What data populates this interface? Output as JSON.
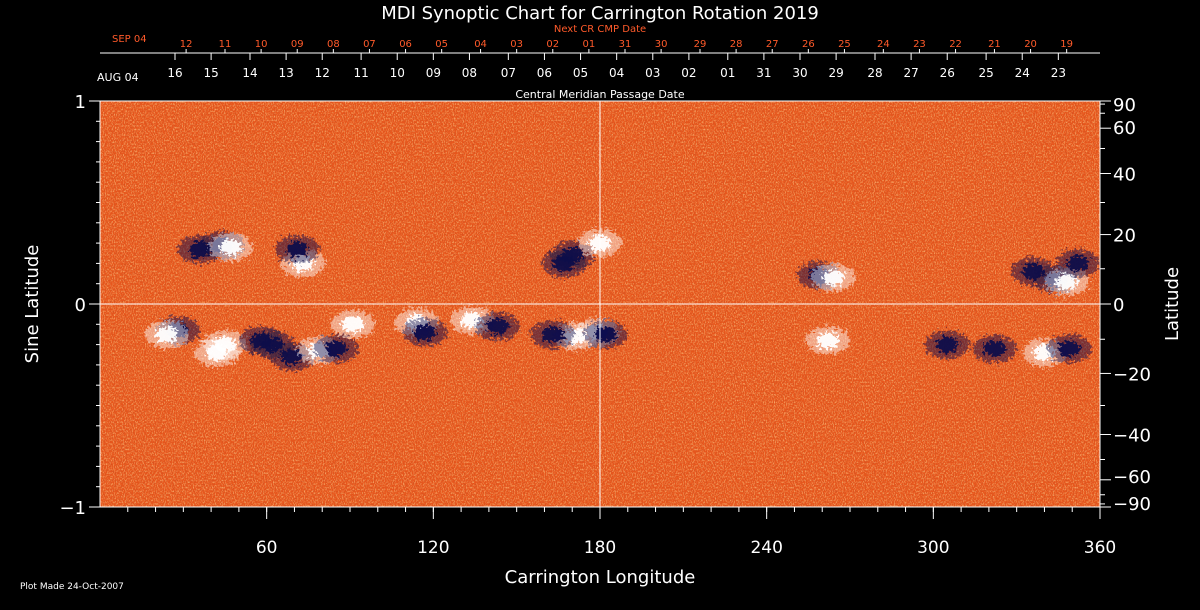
{
  "chart_data": {
    "type": "heatmap",
    "title": "MDI Synoptic Chart for Carrington Rotation 2019",
    "xlabel": "Carrington Longitude",
    "ylabel_left": "Sine Latitude",
    "ylabel_right": "Latitude",
    "xlim": [
      0,
      360
    ],
    "ylim": [
      -1,
      1
    ],
    "x_ticks": [
      60,
      120,
      180,
      240,
      300,
      360
    ],
    "y_ticks_left": [
      {
        "v": 1,
        "label": "1"
      },
      {
        "v": 0,
        "label": "0"
      },
      {
        "v": -1,
        "label": "−1"
      }
    ],
    "y_ticks_right": [
      {
        "deg": 90,
        "label": "90"
      },
      {
        "deg": 60,
        "label": "60"
      },
      {
        "deg": 40,
        "label": "40"
      },
      {
        "deg": 20,
        "label": "20"
      },
      {
        "deg": 0,
        "label": "0"
      },
      {
        "deg": -20,
        "label": "−20"
      },
      {
        "deg": -40,
        "label": "−40"
      },
      {
        "deg": -60,
        "label": "−60"
      },
      {
        "deg": -90,
        "label": "−90"
      }
    ],
    "crosshair": {
      "longitude": 180,
      "sine_latitude": 0
    },
    "cmp_axis": {
      "title": "Central Meridian Passage Date",
      "start_label": "AUG 04",
      "ticks": [
        {
          "lon": 27,
          "label": "16"
        },
        {
          "lon": 40,
          "label": "15"
        },
        {
          "lon": 54,
          "label": "14"
        },
        {
          "lon": 67,
          "label": "13"
        },
        {
          "lon": 80,
          "label": "12"
        },
        {
          "lon": 94,
          "label": "11"
        },
        {
          "lon": 107,
          "label": "10"
        },
        {
          "lon": 120,
          "label": "09"
        },
        {
          "lon": 133,
          "label": "08"
        },
        {
          "lon": 147,
          "label": "07"
        },
        {
          "lon": 160,
          "label": "06"
        },
        {
          "lon": 173,
          "label": "05"
        },
        {
          "lon": 186,
          "label": "04"
        },
        {
          "lon": 199,
          "label": "03"
        },
        {
          "lon": 212,
          "label": "02"
        },
        {
          "lon": 226,
          "label": "01"
        },
        {
          "lon": 239,
          "label": "31"
        },
        {
          "lon": 252,
          "label": "30"
        },
        {
          "lon": 265,
          "label": "29"
        },
        {
          "lon": 279,
          "label": "28"
        },
        {
          "lon": 292,
          "label": "27"
        },
        {
          "lon": 305,
          "label": "26"
        },
        {
          "lon": 319,
          "label": "25"
        },
        {
          "lon": 332,
          "label": "24"
        },
        {
          "lon": 345,
          "label": "23"
        }
      ]
    },
    "next_cmp_axis": {
      "title": "Next CR CMP Date",
      "start_label": "SEP 04",
      "ticks": [
        {
          "lon": 31,
          "label": "12"
        },
        {
          "lon": 45,
          "label": "11"
        },
        {
          "lon": 58,
          "label": "10"
        },
        {
          "lon": 71,
          "label": "09"
        },
        {
          "lon": 84,
          "label": "08"
        },
        {
          "lon": 97,
          "label": "07"
        },
        {
          "lon": 110,
          "label": "06"
        },
        {
          "lon": 123,
          "label": "05"
        },
        {
          "lon": 137,
          "label": "04"
        },
        {
          "lon": 150,
          "label": "03"
        },
        {
          "lon": 163,
          "label": "02"
        },
        {
          "lon": 176,
          "label": "01"
        },
        {
          "lon": 189,
          "label": "31"
        },
        {
          "lon": 202,
          "label": "30"
        },
        {
          "lon": 216,
          "label": "29"
        },
        {
          "lon": 229,
          "label": "28"
        },
        {
          "lon": 242,
          "label": "27"
        },
        {
          "lon": 255,
          "label": "26"
        },
        {
          "lon": 268,
          "label": "25"
        },
        {
          "lon": 282,
          "label": "24"
        },
        {
          "lon": 295,
          "label": "23"
        },
        {
          "lon": 308,
          "label": "22"
        },
        {
          "lon": 322,
          "label": "21"
        },
        {
          "lon": 335,
          "label": "20"
        },
        {
          "lon": 348,
          "label": "19"
        }
      ]
    },
    "active_regions": [
      {
        "lon": 44,
        "sinlat": 0.29,
        "polarity": "negative"
      },
      {
        "lon": 36,
        "sinlat": 0.27,
        "polarity": "negative"
      },
      {
        "lon": 47,
        "sinlat": 0.28,
        "polarity": "positive"
      },
      {
        "lon": 73,
        "sinlat": 0.2,
        "polarity": "positive"
      },
      {
        "lon": 71,
        "sinlat": 0.27,
        "polarity": "negative"
      },
      {
        "lon": 170,
        "sinlat": 0.24,
        "polarity": "negative"
      },
      {
        "lon": 167,
        "sinlat": 0.2,
        "polarity": "negative"
      },
      {
        "lon": 180,
        "sinlat": 0.3,
        "polarity": "positive"
      },
      {
        "lon": 259,
        "sinlat": 0.14,
        "polarity": "negative"
      },
      {
        "lon": 264,
        "sinlat": 0.13,
        "polarity": "positive"
      },
      {
        "lon": 336,
        "sinlat": 0.16,
        "polarity": "negative"
      },
      {
        "lon": 344,
        "sinlat": 0.12,
        "polarity": "negative"
      },
      {
        "lon": 348,
        "sinlat": 0.11,
        "polarity": "positive"
      },
      {
        "lon": 352,
        "sinlat": 0.2,
        "polarity": "negative"
      },
      {
        "lon": 28,
        "sinlat": -0.13,
        "polarity": "negative"
      },
      {
        "lon": 24,
        "sinlat": -0.15,
        "polarity": "positive"
      },
      {
        "lon": 45,
        "sinlat": -0.2,
        "polarity": "positive"
      },
      {
        "lon": 42,
        "sinlat": -0.24,
        "polarity": "positive"
      },
      {
        "lon": 62,
        "sinlat": -0.2,
        "polarity": "negative"
      },
      {
        "lon": 69,
        "sinlat": -0.26,
        "polarity": "negative"
      },
      {
        "lon": 58,
        "sinlat": -0.18,
        "polarity": "negative"
      },
      {
        "lon": 79,
        "sinlat": -0.23,
        "polarity": "positive"
      },
      {
        "lon": 85,
        "sinlat": -0.22,
        "polarity": "negative"
      },
      {
        "lon": 91,
        "sinlat": -0.1,
        "polarity": "positive"
      },
      {
        "lon": 114,
        "sinlat": -0.09,
        "polarity": "positive"
      },
      {
        "lon": 117,
        "sinlat": -0.14,
        "polarity": "negative"
      },
      {
        "lon": 134,
        "sinlat": -0.08,
        "polarity": "positive"
      },
      {
        "lon": 143,
        "sinlat": -0.11,
        "polarity": "negative"
      },
      {
        "lon": 171,
        "sinlat": -0.16,
        "polarity": "positive"
      },
      {
        "lon": 179,
        "sinlat": -0.14,
        "polarity": "positive"
      },
      {
        "lon": 182,
        "sinlat": -0.15,
        "polarity": "negative"
      },
      {
        "lon": 163,
        "sinlat": -0.15,
        "polarity": "negative"
      },
      {
        "lon": 262,
        "sinlat": -0.18,
        "polarity": "positive"
      },
      {
        "lon": 305,
        "sinlat": -0.2,
        "polarity": "negative"
      },
      {
        "lon": 340,
        "sinlat": -0.24,
        "polarity": "positive"
      },
      {
        "lon": 349,
        "sinlat": -0.22,
        "polarity": "negative"
      },
      {
        "lon": 322,
        "sinlat": -0.22,
        "polarity": "negative"
      }
    ],
    "colors": {
      "background": "#000000",
      "field_base": "#e8561c",
      "positive": "#ffffff",
      "negative": "#0a0a4a",
      "accent_text": "#ff5a2a"
    }
  },
  "footer": {
    "plot_made": "Plot Made 24-Oct-2007"
  }
}
